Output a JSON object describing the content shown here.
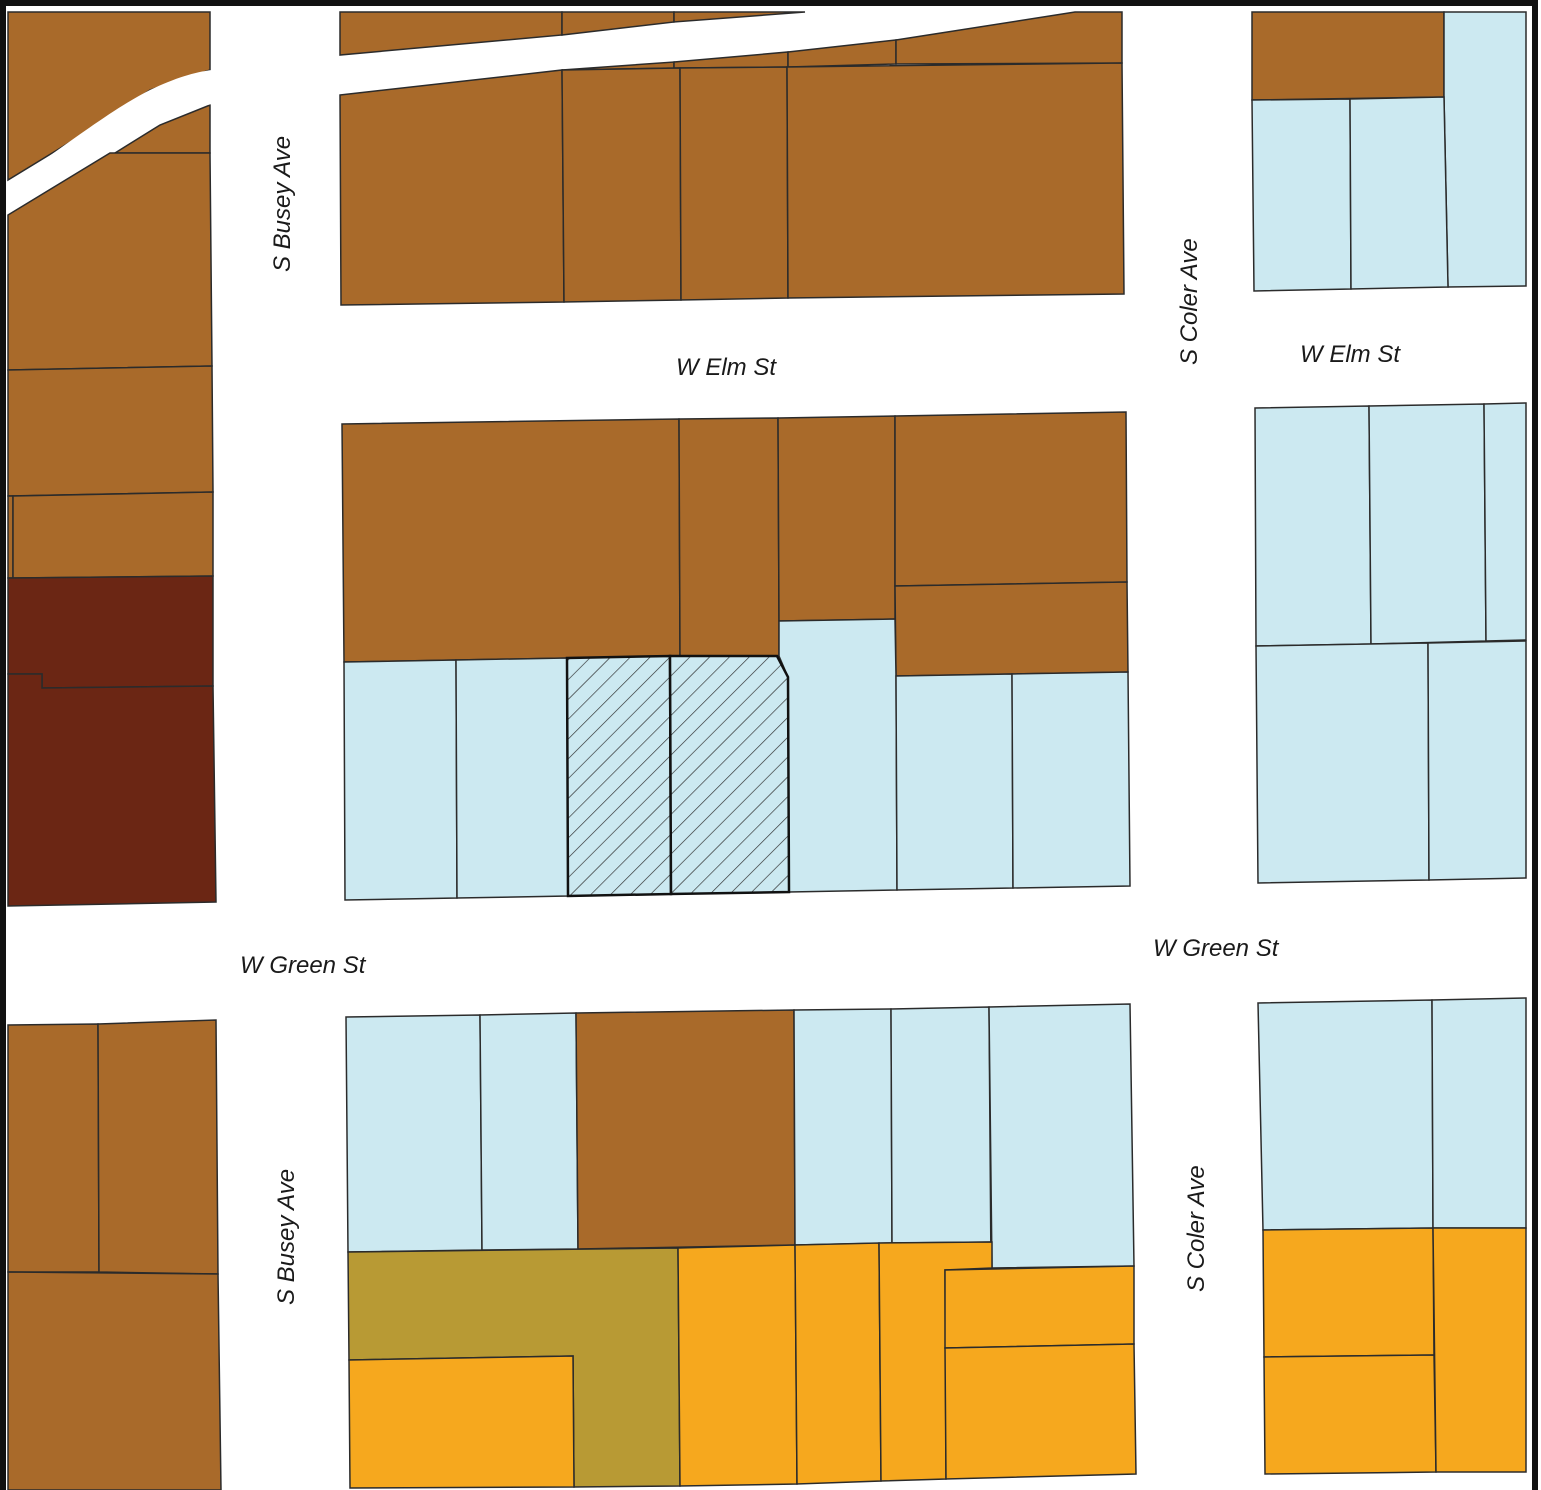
{
  "map": {
    "street_labels": {
      "busey_north": "S Busey Ave",
      "coler_north": "S Coler Ave",
      "elm_center": "W Elm St",
      "elm_east": "W Elm St",
      "green_west": "W Green St",
      "green_east": "W Green St",
      "busey_south": "S Busey Ave",
      "coler_south": "S Coler Ave"
    },
    "colors": {
      "brown": "#a96a2a",
      "dark_brown": "#6b2614",
      "light_blue": "#cce9f1",
      "orange": "#f6a81e",
      "olive": "#b89a34",
      "hatch_stroke": "#2b2b2b",
      "frame": "#111111"
    }
  }
}
